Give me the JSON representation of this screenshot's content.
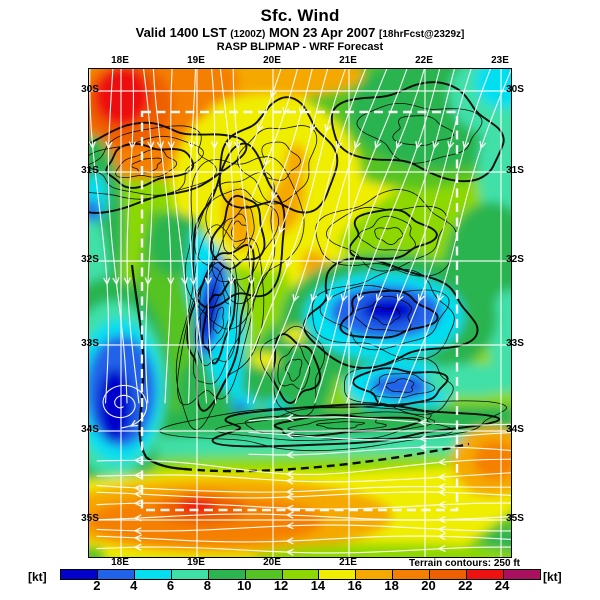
{
  "header": {
    "title": "Sfc. Wind",
    "valid_prefix": "Valid 1400 LST",
    "valid_init": "(1200Z)",
    "valid_date": "MON 23 Apr 2007",
    "valid_fcst": "[18hrFcst@2329z]",
    "model_line": "RASP BLIPMAP - WRF Forecast"
  },
  "map": {
    "top_axis": [
      "18E",
      "19E",
      "20E",
      "21E",
      "22E",
      "23E"
    ],
    "bottom_axis": [
      "18E",
      "19E",
      "20E",
      "21E"
    ],
    "left_axis": [
      "30S",
      "31S",
      "32S",
      "33S",
      "34S",
      "35S"
    ],
    "right_axis": [
      "30S",
      "31S",
      "32S",
      "33S",
      "34S",
      "35S"
    ],
    "terrain_note": "Terrain contours: 250 ft"
  },
  "colorbar": {
    "unit_left": "[kt]",
    "unit_right": "[kt]",
    "ticks": [
      2,
      4,
      6,
      8,
      10,
      12,
      14,
      16,
      18,
      20,
      22,
      24
    ],
    "colors": [
      "#0202cc",
      "#2062e8",
      "#04dff0",
      "#3fe0a8",
      "#2cb450",
      "#55c324",
      "#8cd800",
      "#f0ee00",
      "#f5a800",
      "#f57f00",
      "#ee5f00",
      "#ee1111",
      "#aa1060"
    ]
  },
  "chart_data": {
    "type": "heatmap",
    "title": "Sfc. Wind",
    "valid": "Valid 1400 LST (1200Z) MON 23 Apr 2007 [18hrFcst@2329z]",
    "source": "RASP BLIPMAP - WRF Forecast",
    "units": "kt",
    "x_axis": {
      "kind": "longitude",
      "ticks": [
        "18E",
        "19E",
        "20E",
        "21E",
        "22E",
        "23E"
      ],
      "range": [
        "17.6E",
        "23.1E"
      ]
    },
    "y_axis": {
      "kind": "latitude",
      "ticks": [
        "30S",
        "31S",
        "32S",
        "33S",
        "34S",
        "35S"
      ],
      "range": [
        "29.7S",
        "35.5S"
      ]
    },
    "colorbar": {
      "unit": "[kt]",
      "boundary_ticks": [
        2,
        4,
        6,
        8,
        10,
        12,
        14,
        16,
        18,
        20,
        22,
        24
      ],
      "n_bands": 13
    },
    "terrain_contour_interval": "250 ft",
    "overlays": [
      "white streamlines with arrowheads (surface wind flow)",
      "black terrain contours",
      "white lat/lon grid",
      "white dashed nested-domain rectangle"
    ],
    "sampled_grid_kt": {
      "lons": [
        "18E",
        "19E",
        "20E",
        "21E",
        "22E",
        "23E"
      ],
      "lats": [
        "30S",
        "31S",
        "32S",
        "33S",
        "34S",
        "35S"
      ],
      "values": [
        [
          24,
          18,
          16,
          13,
          10,
          6
        ],
        [
          8,
          11,
          16,
          15,
          12,
          9
        ],
        [
          10,
          5,
          15,
          18,
          10,
          10
        ],
        [
          4,
          3,
          9,
          8,
          4,
          6
        ],
        [
          3,
          6,
          9,
          8,
          6,
          7
        ],
        [
          18,
          21,
          18,
          16,
          15,
          11
        ]
      ]
    },
    "features": [
      "strong red/orange wind maximum (22-26 kt) near 18E 30S (northwest corner)",
      "yellow 14-18 kt band across the northern interior",
      "green/cyan 6-12 kt over the northeast and east",
      "calm blue areas (<4 kt) offshore near 18E 33-34S with closed eddy/vortex",
      "calm blue pocket near 21.5-22.5E around 33S",
      "strong orange band 18-22 kt with red-orange core along the south coast sea near 19E 34.5-35S",
      "dense black terrain contours over the Cape fold mountain belts"
    ]
  }
}
